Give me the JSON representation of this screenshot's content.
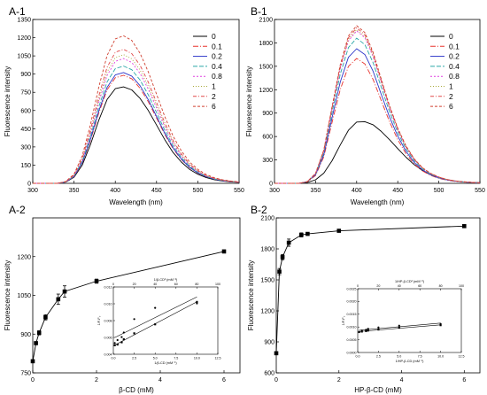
{
  "chart_data": [
    {
      "panel": "A-1",
      "type": "line",
      "xlabel": "Wavelength (nm)",
      "ylabel": "Fluorescence intensity",
      "xlim": [
        300,
        550
      ],
      "ylim": [
        0,
        1350
      ],
      "xticks": [
        300,
        350,
        400,
        450,
        500,
        550
      ],
      "yticks": [
        0,
        150,
        300,
        450,
        600,
        750,
        900,
        1050,
        1200,
        1350
      ],
      "x": [
        300,
        310,
        320,
        330,
        340,
        350,
        360,
        370,
        380,
        390,
        400,
        410,
        420,
        430,
        440,
        450,
        460,
        470,
        480,
        490,
        500,
        510,
        520,
        530,
        540,
        550
      ],
      "legend_position": "top-right",
      "series": [
        {
          "name": "0",
          "color": "#000000",
          "values": [
            0,
            0,
            0,
            0,
            10,
            50,
            150,
            320,
            520,
            690,
            780,
            795,
            770,
            700,
            600,
            480,
            360,
            255,
            175,
            115,
            75,
            48,
            30,
            19,
            12,
            8
          ]
        },
        {
          "name": "0.1",
          "color": "#e8332d",
          "values": [
            0,
            0,
            0,
            0,
            11,
            55,
            165,
            355,
            580,
            770,
            870,
            890,
            862,
            783,
            672,
            538,
            403,
            286,
            196,
            129,
            84,
            54,
            34,
            21,
            13,
            9
          ]
        },
        {
          "name": "0.2",
          "color": "#2c35c9",
          "values": [
            0,
            0,
            0,
            0,
            11,
            57,
            170,
            365,
            597,
            790,
            893,
            913,
            884,
            804,
            689,
            551,
            413,
            293,
            201,
            132,
            86,
            55,
            34,
            22,
            14,
            9
          ]
        },
        {
          "name": "0.4",
          "color": "#2aa7a7",
          "values": [
            0,
            0,
            0,
            0,
            12,
            60,
            180,
            385,
            630,
            835,
            945,
            966,
            936,
            851,
            729,
            583,
            437,
            310,
            213,
            140,
            91,
            58,
            36,
            23,
            15,
            10
          ]
        },
        {
          "name": "0.8",
          "color": "#e040e0",
          "values": [
            0,
            0,
            0,
            0,
            13,
            64,
            192,
            410,
            670,
            888,
            1005,
            1028,
            996,
            905,
            776,
            621,
            465,
            330,
            226,
            149,
            97,
            62,
            39,
            25,
            16,
            10
          ]
        },
        {
          "name": "1",
          "color": "#a8a83a",
          "values": [
            0,
            0,
            0,
            0,
            13,
            66,
            198,
            423,
            691,
            916,
            1036,
            1060,
            1026,
            933,
            800,
            640,
            479,
            340,
            233,
            153,
            100,
            64,
            40,
            25,
            16,
            11
          ]
        },
        {
          "name": "2",
          "color": "#e04848",
          "values": [
            0,
            0,
            0,
            0,
            14,
            69,
            206,
            440,
            720,
            955,
            1080,
            1104,
            1069,
            972,
            833,
            666,
            499,
            354,
            243,
            160,
            104,
            66,
            42,
            26,
            17,
            11
          ]
        },
        {
          "name": "6",
          "color": "#d04030",
          "values": [
            0,
            0,
            0,
            0,
            15,
            76,
            227,
            485,
            793,
            1052,
            1190,
            1216,
            1178,
            1071,
            918,
            734,
            550,
            390,
            268,
            176,
            115,
            73,
            46,
            29,
            19,
            12
          ]
        }
      ]
    },
    {
      "panel": "B-1",
      "type": "line",
      "xlabel": "Wavelength (nm)",
      "ylabel": "Fluorescence intensity",
      "xlim": [
        300,
        550
      ],
      "ylim": [
        0,
        2100
      ],
      "xticks": [
        300,
        350,
        400,
        450,
        500,
        550
      ],
      "yticks": [
        0,
        300,
        600,
        900,
        1200,
        1500,
        1800,
        2100
      ],
      "x": [
        300,
        310,
        320,
        330,
        340,
        350,
        360,
        370,
        380,
        390,
        400,
        410,
        420,
        430,
        440,
        450,
        460,
        470,
        480,
        490,
        500,
        510,
        520,
        530,
        540,
        550
      ],
      "legend_position": "top-right",
      "series": [
        {
          "name": "0",
          "color": "#000000",
          "values": [
            0,
            0,
            0,
            0,
            10,
            45,
            130,
            290,
            490,
            680,
            785,
            790,
            750,
            665,
            560,
            445,
            335,
            240,
            165,
            110,
            72,
            46,
            29,
            18,
            12,
            8
          ]
        },
        {
          "name": "0.1",
          "color": "#e8332d",
          "values": [
            0,
            0,
            0,
            0,
            18,
            100,
            340,
            780,
            1200,
            1500,
            1600,
            1530,
            1330,
            1060,
            790,
            560,
            380,
            250,
            160,
            102,
            64,
            40,
            25,
            16,
            10,
            6
          ]
        },
        {
          "name": "0.2",
          "color": "#2c35c9",
          "values": [
            0,
            0,
            0,
            0,
            20,
            110,
            365,
            840,
            1295,
            1615,
            1725,
            1650,
            1435,
            1140,
            850,
            605,
            410,
            268,
            172,
            110,
            69,
            43,
            27,
            17,
            11,
            7
          ]
        },
        {
          "name": "0.4",
          "color": "#2aa7a7",
          "values": [
            0,
            0,
            0,
            0,
            21,
            118,
            395,
            905,
            1395,
            1740,
            1860,
            1778,
            1545,
            1230,
            917,
            652,
            442,
            289,
            185,
            118,
            74,
            46,
            29,
            18,
            11,
            7
          ]
        },
        {
          "name": "0.8",
          "color": "#e040e0",
          "values": [
            0,
            0,
            0,
            0,
            22,
            124,
            414,
            950,
            1465,
            1827,
            1953,
            1867,
            1623,
            1291,
            963,
            684,
            464,
            303,
            195,
            124,
            78,
            48,
            30,
            19,
            12,
            7
          ]
        },
        {
          "name": "1",
          "color": "#a8a83a",
          "values": [
            0,
            0,
            0,
            0,
            22,
            125,
            418,
            960,
            1478,
            1844,
            1970,
            1884,
            1638,
            1303,
            972,
            691,
            468,
            306,
            196,
            125,
            79,
            49,
            31,
            19,
            12,
            7
          ]
        },
        {
          "name": "2",
          "color": "#e04848",
          "values": [
            0,
            0,
            0,
            0,
            22,
            127,
            423,
            970,
            1495,
            1865,
            1993,
            1906,
            1657,
            1318,
            983,
            699,
            473,
            310,
            199,
            127,
            80,
            49,
            31,
            19,
            12,
            7
          ]
        },
        {
          "name": "6",
          "color": "#d04030",
          "values": [
            0,
            0,
            0,
            0,
            23,
            128,
            428,
            983,
            1515,
            1890,
            2020,
            1932,
            1679,
            1336,
            996,
            708,
            480,
            314,
            201,
            128,
            81,
            50,
            31,
            20,
            12,
            8
          ]
        }
      ]
    },
    {
      "panel": "A-2",
      "type": "scatter",
      "xlabel": "β-CD (mM)",
      "ylabel": "Fluorescence intensity",
      "xlim": [
        0,
        6.5
      ],
      "ylim": [
        750,
        1350
      ],
      "xticks": [
        0,
        2,
        4,
        6
      ],
      "yticks": [
        750,
        900,
        1050,
        1200
      ],
      "x": [
        0,
        0.1,
        0.2,
        0.4,
        0.8,
        1,
        2,
        6
      ],
      "values": [
        795,
        865,
        905,
        965,
        1035,
        1065,
        1105,
        1220
      ],
      "errors": [
        0,
        5,
        8,
        10,
        20,
        22,
        8,
        6
      ],
      "inset": {
        "xlabel_bottom": "1/β-CD (mM⁻¹)",
        "xlabel_top": "1/β-CD² (mM⁻²)",
        "ylabel": "1/F-F₀",
        "xticks_bottom": [
          "0.0",
          "2.5",
          "5.0",
          "7.5",
          "10.0",
          "12.5"
        ],
        "xticks_top": [
          "0",
          "20",
          "40",
          "60",
          "80",
          "100"
        ],
        "yticks": [
          "0.004",
          "0.006",
          "0.008",
          "0.010",
          "0.012"
        ],
        "xlim": [
          0,
          12.5
        ],
        "ylim": [
          0.0035,
          0.0125
        ],
        "series": [
          {
            "x": [
              0.17,
              0.5,
              1.0,
              1.25,
              2.5,
              5,
              10
            ],
            "values": [
              0.0047,
              0.0048,
              0.0051,
              0.0055,
              0.0063,
              0.0075,
              0.0105
            ]
          },
          {
            "x": [
              0.17,
              0.5,
              1.0,
              1.25,
              2.5,
              5,
              10
            ],
            "values": [
              0.005,
              0.0054,
              0.0058,
              0.0064,
              0.0082,
              0.0097,
              0.0103
            ]
          }
        ]
      }
    },
    {
      "panel": "B-2",
      "type": "scatter",
      "xlabel": "HP-β-CD (mM)",
      "ylabel": "Fluorescence intensity",
      "xlim": [
        0,
        6.5
      ],
      "ylim": [
        600,
        2100
      ],
      "xticks": [
        0,
        2,
        4,
        6
      ],
      "yticks": [
        600,
        900,
        1200,
        1500,
        1800,
        2100
      ],
      "x": [
        0,
        0.1,
        0.2,
        0.4,
        0.8,
        1,
        2,
        6
      ],
      "values": [
        790,
        1580,
        1720,
        1860,
        1935,
        1945,
        1975,
        2020
      ],
      "errors": [
        0,
        30,
        25,
        35,
        20,
        10,
        10,
        10
      ],
      "inset": {
        "xlabel_bottom": "1/HP-β-CD (mM⁻¹)",
        "xlabel_top": "1/HP-β-CD² (mM⁻²)",
        "ylabel": "1/F-F₀",
        "xticks_bottom": [
          "0.0",
          "2.5",
          "5.0",
          "7.5",
          "10.0",
          "12.5"
        ],
        "xticks_top": [
          "0",
          "20",
          "40",
          "60",
          "80",
          "100"
        ],
        "yticks": [
          "0.0000",
          "0.0005",
          "0.0010",
          "0.0015",
          "0.0020",
          "0.0025"
        ],
        "xlim": [
          0,
          12.5
        ],
        "ylim": [
          0,
          0.0025
        ],
        "series": [
          {
            "x": [
              0.17,
              0.5,
              1.0,
              1.25,
              2.5,
              5,
              10
            ],
            "values": [
              0.0008,
              0.00082,
              0.00084,
              0.00086,
              0.0009,
              0.00097,
              0.00107
            ]
          },
          {
            "x": [
              0.17,
              0.5,
              1.0,
              1.25,
              2.5,
              5,
              10
            ],
            "values": [
              0.00081,
              0.00086,
              0.00089,
              0.00093,
              0.00098,
              0.00105,
              0.00112
            ]
          }
        ]
      }
    }
  ]
}
